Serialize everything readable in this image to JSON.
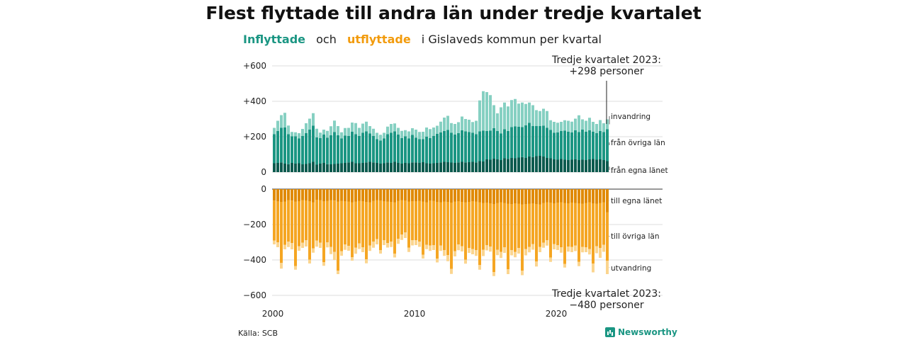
{
  "title": "Flest flyttade till andra län under tredje kvartalet",
  "subtitle": {
    "part1": "Inflyttade",
    "part2": "och",
    "part3": "utflyttade",
    "part4": "i Gislaveds  kommun  per  kvartal"
  },
  "source": "Källa: SCB",
  "brand": "Newsworthy",
  "colors": {
    "in_egna": "#0d5b4f",
    "in_ovriga": "#1b9683",
    "in_invandring": "#86d0c2",
    "ut_egna": "#e08a06",
    "ut_ovriga": "#f5a623",
    "ut_utvandring": "#fbd58f",
    "subtitle_in": "#1b9683",
    "subtitle_ut": "#f29b0c"
  },
  "chart_data": {
    "type": "bar",
    "stacked": true,
    "x_start": "2000 Q1",
    "quarters": 95,
    "x_ticks": [
      "2000",
      "2010",
      "2020"
    ],
    "y_ticks_top": [
      "+600",
      "+400",
      "+200",
      "0"
    ],
    "y_ticks_bottom": [
      "0",
      "−200",
      "−400",
      "−600"
    ],
    "ylim_top": [
      0,
      600
    ],
    "ylim_bottom": [
      -600,
      0
    ],
    "series_in": [
      {
        "name": "från egna länet",
        "values": [
          50,
          52,
          55,
          48,
          45,
          52,
          48,
          50,
          44,
          46,
          50,
          58,
          42,
          48,
          52,
          45,
          44,
          46,
          48,
          50,
          52,
          55,
          58,
          50,
          50,
          52,
          55,
          58,
          55,
          52,
          48,
          50,
          55,
          52,
          58,
          52,
          48,
          52,
          50,
          55,
          55,
          52,
          56,
          50,
          48,
          50,
          52,
          55,
          58,
          56,
          54,
          52,
          55,
          58,
          55,
          56,
          58,
          55,
          62,
          60,
          72,
          70,
          76,
          72,
          68,
          78,
          75,
          80,
          78,
          82,
          85,
          80,
          88,
          85,
          90,
          92,
          88,
          80,
          78,
          72,
          70,
          74,
          70,
          68,
          70,
          72,
          68,
          70,
          68,
          72,
          74,
          70,
          72,
          68,
          62
        ]
      },
      {
        "name": "från övriga län",
        "values": [
          165,
          180,
          195,
          205,
          170,
          150,
          155,
          140,
          160,
          175,
          190,
          205,
          155,
          145,
          160,
          150,
          165,
          180,
          160,
          140,
          155,
          150,
          170,
          165,
          155,
          170,
          175,
          160,
          150,
          135,
          130,
          140,
          160,
          170,
          172,
          160,
          145,
          150,
          140,
          155,
          140,
          135,
          130,
          150,
          145,
          155,
          165,
          170,
          175,
          182,
          168,
          160,
          165,
          178,
          175,
          170,
          165,
          160,
          168,
          175,
          160,
          165,
          172,
          160,
          150,
          165,
          158,
          175,
          180,
          175,
          170,
          185,
          190,
          175,
          170,
          168,
          175,
          170,
          160,
          150,
          155,
          158,
          165,
          160,
          155,
          165,
          158,
          170,
          160,
          165,
          155,
          150,
          160,
          158,
          180
        ]
      },
      {
        "name": "invandring",
        "values": [
          35,
          58,
          72,
          82,
          48,
          25,
          22,
          30,
          40,
          55,
          62,
          70,
          48,
          30,
          28,
          38,
          50,
          65,
          52,
          35,
          42,
          45,
          52,
          62,
          45,
          52,
          55,
          42,
          40,
          35,
          33,
          32,
          42,
          50,
          45,
          38,
          40,
          35,
          40,
          38,
          45,
          40,
          42,
          52,
          50,
          47,
          45,
          60,
          75,
          80,
          55,
          60,
          62,
          78,
          70,
          70,
          60,
          75,
          175,
          222,
          220,
          200,
          130,
          100,
          148,
          150,
          138,
          152,
          155,
          130,
          138,
          120,
          115,
          118,
          90,
          85,
          95,
          95,
          55,
          62,
          54,
          52,
          58,
          62,
          60,
          65,
          95,
          58,
          62,
          70,
          55,
          52,
          62,
          50,
          56
        ]
      }
    ],
    "series_out": [
      {
        "name": "till egna länet",
        "values": [
          -65,
          -68,
          -72,
          -70,
          -62,
          -65,
          -70,
          -68,
          -62,
          -64,
          -68,
          -74,
          -60,
          -62,
          -68,
          -66,
          -62,
          -65,
          -70,
          -66,
          -68,
          -70,
          -74,
          -70,
          -66,
          -68,
          -72,
          -74,
          -66,
          -62,
          -64,
          -68,
          -70,
          -72,
          -74,
          -66,
          -62,
          -64,
          -70,
          -68,
          -68,
          -66,
          -70,
          -74,
          -64,
          -66,
          -72,
          -74,
          -70,
          -72,
          -76,
          -70,
          -68,
          -72,
          -74,
          -72,
          -68,
          -70,
          -74,
          -78,
          -76,
          -80,
          -84,
          -78,
          -74,
          -78,
          -82,
          -84,
          -80,
          -82,
          -86,
          -84,
          -82,
          -80,
          -84,
          -86,
          -78,
          -74,
          -76,
          -80,
          -76,
          -74,
          -78,
          -80,
          -76,
          -78,
          -80,
          -82,
          -78,
          -74,
          -80,
          -82,
          -78,
          -74,
          -130
        ]
      },
      {
        "name": "till övriga län",
        "values": [
          -225,
          -232,
          -345,
          -245,
          -235,
          -240,
          -365,
          -255,
          -240,
          -225,
          -330,
          -260,
          -230,
          -240,
          -345,
          -235,
          -265,
          -290,
          -390,
          -285,
          -245,
          -250,
          -310,
          -260,
          -240,
          -260,
          -325,
          -245,
          -230,
          -220,
          -280,
          -220,
          -235,
          -225,
          -290,
          -215,
          -195,
          -180,
          -260,
          -220,
          -220,
          -230,
          -300,
          -240,
          -255,
          -250,
          -320,
          -245,
          -275,
          -300,
          -375,
          -280,
          -245,
          -250,
          -325,
          -260,
          -270,
          -275,
          -355,
          -265,
          -240,
          -245,
          -385,
          -265,
          -280,
          -250,
          -370,
          -260,
          -275,
          -250,
          -375,
          -255,
          -245,
          -230,
          -325,
          -240,
          -225,
          -215,
          -310,
          -230,
          -240,
          -255,
          -345,
          -245,
          -250,
          -240,
          -330,
          -245,
          -250,
          -265,
          -340,
          -240,
          -255,
          -240,
          -275
        ]
      },
      {
        "name": "utvandring",
        "values": [
          -22,
          -28,
          -32,
          -25,
          -30,
          -35,
          -20,
          -25,
          -30,
          -35,
          -22,
          -25,
          -35,
          -30,
          -20,
          -28,
          -40,
          -45,
          -20,
          -25,
          -30,
          -28,
          -20,
          -35,
          -32,
          -28,
          -22,
          -30,
          -35,
          -30,
          -20,
          -28,
          -25,
          -30,
          -22,
          -28,
          -30,
          -32,
          -25,
          -30,
          -28,
          -30,
          -22,
          -25,
          -30,
          -28,
          -22,
          -30,
          -32,
          -35,
          -28,
          -30,
          -32,
          -30,
          -22,
          -28,
          -30,
          -32,
          -26,
          -35,
          -30,
          -28,
          -22,
          -30,
          -35,
          -32,
          -28,
          -30,
          -30,
          -32,
          -25,
          -35,
          -30,
          -32,
          -28,
          -30,
          -28,
          -30,
          -25,
          -30,
          -28,
          -30,
          -20,
          -28,
          -30,
          -32,
          -25,
          -30,
          -28,
          -30,
          -50,
          -40,
          -55,
          -40,
          -75
        ]
      }
    ],
    "annotation_top": [
      "Tredje kvartalet 2023:",
      "+298 personer"
    ],
    "annotation_bottom": [
      "Tredje kvartalet 2023:",
      "−480 personer"
    ]
  }
}
